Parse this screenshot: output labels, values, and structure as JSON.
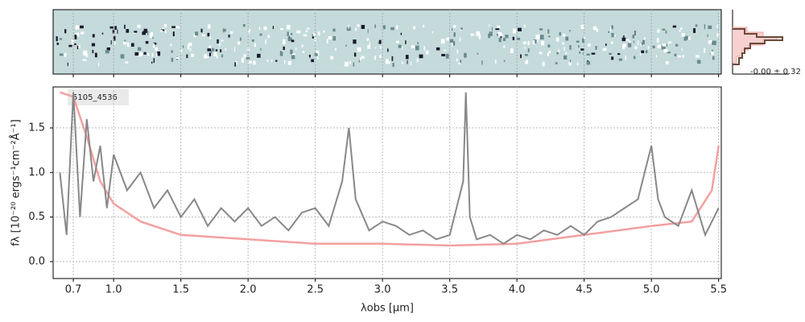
{
  "chart_data": {
    "type": "line",
    "label": "5105_4536",
    "xlabel": "λobs [μm]",
    "ylabel": "fλ [10⁻²⁰ ergs⁻¹cm⁻²Å⁻¹]",
    "inset_label": "-0.00 ± 0.32",
    "xlim": [
      0.55,
      5.52
    ],
    "ylim": [
      -0.19,
      1.96
    ],
    "xticks": [
      0.7,
      {
        "value": 1.0,
        "label": "1.0"
      },
      1.5,
      {
        "value": 2.0,
        "label": "2.0"
      },
      2.5,
      {
        "value": 3.0,
        "label": "3.0"
      },
      3.5,
      {
        "value": 4.0,
        "label": "4.0"
      },
      4.5,
      {
        "value": 5.0,
        "label": "5.0"
      },
      5.5
    ],
    "yticks": [
      {
        "value": 0,
        "label": "0.0"
      },
      0.5,
      {
        "value": 1.0,
        "label": "1.0"
      },
      1.5
    ],
    "grid": true,
    "series": [
      {
        "color": "#f4a0a0",
        "x": [
          0.6,
          0.7,
          0.8,
          0.9,
          1.0,
          1.2,
          1.5,
          2.0,
          2.5,
          3.0,
          3.5,
          4.0,
          4.5,
          5.0,
          5.3,
          5.45,
          5.5
        ],
        "values": [
          1.9,
          1.85,
          1.4,
          0.9,
          0.65,
          0.45,
          0.3,
          0.25,
          0.2,
          0.2,
          0.18,
          0.2,
          0.3,
          0.4,
          0.45,
          0.8,
          1.3
        ]
      },
      {
        "color": "#888888",
        "x": [
          0.6,
          0.65,
          0.7,
          0.75,
          0.8,
          0.85,
          0.9,
          0.95,
          1.0,
          1.1,
          1.2,
          1.3,
          1.4,
          1.5,
          1.6,
          1.7,
          1.8,
          1.9,
          2.0,
          2.1,
          2.2,
          2.3,
          2.4,
          2.5,
          2.6,
          2.7,
          2.75,
          2.8,
          2.9,
          3.0,
          3.1,
          3.2,
          3.3,
          3.4,
          3.5,
          3.6,
          3.62,
          3.65,
          3.7,
          3.8,
          3.9,
          4.0,
          4.1,
          4.2,
          4.3,
          4.4,
          4.5,
          4.6,
          4.7,
          4.8,
          4.9,
          4.95,
          5.0,
          5.05,
          5.1,
          5.2,
          5.3,
          5.4,
          5.5
        ],
        "values": [
          1.0,
          0.3,
          1.9,
          0.5,
          1.6,
          0.9,
          1.3,
          0.6,
          1.2,
          0.8,
          1.0,
          0.6,
          0.8,
          0.5,
          0.7,
          0.4,
          0.6,
          0.45,
          0.6,
          0.4,
          0.5,
          0.35,
          0.55,
          0.6,
          0.4,
          0.9,
          1.5,
          0.7,
          0.35,
          0.45,
          0.4,
          0.3,
          0.35,
          0.25,
          0.3,
          0.9,
          1.9,
          0.5,
          0.25,
          0.3,
          0.2,
          0.3,
          0.25,
          0.35,
          0.3,
          0.4,
          0.3,
          0.45,
          0.5,
          0.6,
          0.7,
          1.0,
          1.3,
          0.7,
          0.5,
          0.4,
          0.8,
          0.3,
          0.6
        ]
      }
    ]
  }
}
